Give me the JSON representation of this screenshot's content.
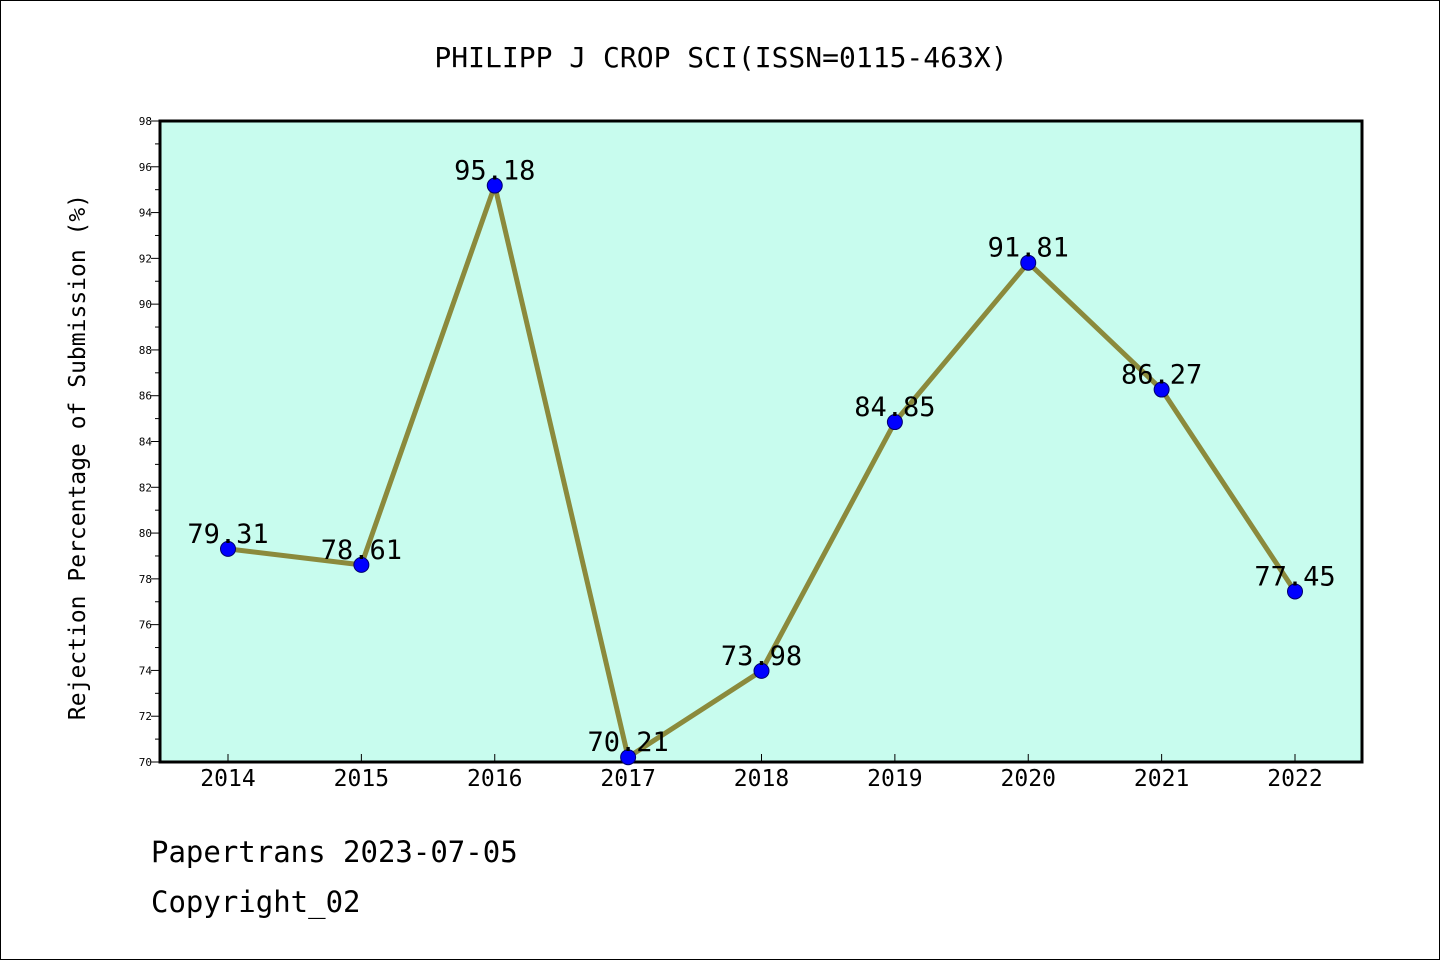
{
  "chart_data": {
    "type": "line",
    "title": "PHILIPP J CROP SCI(ISSN=0115-463X)",
    "xlabel": "",
    "ylabel": "Rejection Percentage of Submission (%)",
    "categories": [
      "2014",
      "2015",
      "2016",
      "2017",
      "2018",
      "2019",
      "2020",
      "2021",
      "2022"
    ],
    "values": [
      79.31,
      78.61,
      95.18,
      70.21,
      73.98,
      84.85,
      91.81,
      86.27,
      77.45
    ],
    "data_labels": [
      "79.31",
      "78.61",
      "95.18",
      "70.21",
      "73.98",
      "84.85",
      "91.81",
      "86.27",
      "77.45"
    ],
    "ylim": [
      70,
      98
    ],
    "yticks": [
      "70",
      "72",
      "74",
      "76",
      "78",
      "80",
      "82",
      "84",
      "86",
      "88",
      "90",
      "92",
      "94",
      "96",
      "98"
    ],
    "grid": false,
    "legend": "none",
    "colors": {
      "plot_background": "#c8fcee",
      "line": "#8b8a3c",
      "marker": "#0000ff"
    }
  },
  "footer": {
    "source": "Papertrans 2023-07-05",
    "copyright": "Copyright_02"
  }
}
